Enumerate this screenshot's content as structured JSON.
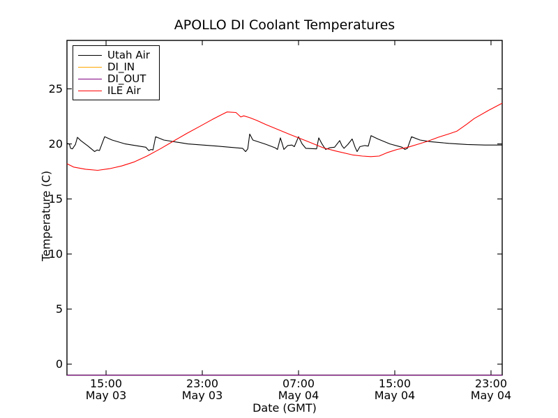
{
  "figure": {
    "background": "#ffffff",
    "axis_color": "#000000"
  },
  "chart_data": {
    "type": "line",
    "title": "APOLLO DI Coolant Temperatures",
    "xlabel": "Date (GMT)",
    "ylabel": "Temperature (C)",
    "grid": false,
    "legend_position": "upper left",
    "xlim_hours": [
      11.75,
      47.93
    ],
    "ylim": [
      -1.0,
      29.4
    ],
    "x_hours_reference": "hours since May 03 00:00 GMT",
    "yticks": [
      0,
      5,
      10,
      15,
      20,
      25
    ],
    "xticks": [
      {
        "hour": 15,
        "time": "15:00",
        "date": "May 03"
      },
      {
        "hour": 23,
        "time": "23:00",
        "date": "May 03"
      },
      {
        "hour": 31,
        "time": "07:00",
        "date": "May 04"
      },
      {
        "hour": 39,
        "time": "15:00",
        "date": "May 04"
      },
      {
        "hour": 47,
        "time": "23:00",
        "date": "May 04"
      }
    ],
    "series": [
      {
        "name": "Utah Air",
        "color": "#000000",
        "points": [
          [
            11.75,
            20.05
          ],
          [
            11.95,
            20.0
          ],
          [
            12.05,
            19.6
          ],
          [
            12.2,
            19.55
          ],
          [
            12.45,
            19.95
          ],
          [
            12.62,
            20.6
          ],
          [
            12.9,
            20.3
          ],
          [
            13.5,
            19.8
          ],
          [
            14.05,
            19.3
          ],
          [
            14.25,
            19.45
          ],
          [
            14.45,
            19.4
          ],
          [
            14.88,
            20.65
          ],
          [
            15.5,
            20.35
          ],
          [
            16.6,
            20.0
          ],
          [
            18.3,
            19.7
          ],
          [
            18.55,
            19.4
          ],
          [
            18.75,
            19.5
          ],
          [
            18.9,
            19.45
          ],
          [
            19.12,
            20.65
          ],
          [
            19.8,
            20.35
          ],
          [
            21.8,
            20.0
          ],
          [
            24.2,
            19.8
          ],
          [
            26.35,
            19.6
          ],
          [
            26.6,
            19.3
          ],
          [
            26.78,
            19.55
          ],
          [
            26.94,
            20.9
          ],
          [
            27.2,
            20.35
          ],
          [
            28.2,
            20.0
          ],
          [
            29.05,
            19.65
          ],
          [
            29.25,
            19.5
          ],
          [
            29.49,
            20.55
          ],
          [
            29.65,
            20.0
          ],
          [
            29.78,
            19.5
          ],
          [
            30.1,
            19.85
          ],
          [
            30.45,
            19.9
          ],
          [
            30.65,
            19.75
          ],
          [
            31.0,
            20.65
          ],
          [
            31.3,
            20.0
          ],
          [
            31.6,
            19.6
          ],
          [
            32.5,
            19.55
          ],
          [
            32.68,
            20.55
          ],
          [
            32.95,
            20.0
          ],
          [
            33.25,
            19.5
          ],
          [
            33.6,
            19.65
          ],
          [
            34.0,
            19.7
          ],
          [
            34.42,
            20.3
          ],
          [
            34.6,
            19.85
          ],
          [
            34.78,
            19.6
          ],
          [
            35.1,
            19.95
          ],
          [
            35.46,
            20.45
          ],
          [
            35.7,
            19.7
          ],
          [
            35.87,
            19.3
          ],
          [
            36.1,
            19.75
          ],
          [
            36.5,
            19.85
          ],
          [
            36.8,
            19.8
          ],
          [
            37.03,
            20.75
          ],
          [
            37.6,
            20.45
          ],
          [
            38.6,
            20.0
          ],
          [
            39.6,
            19.7
          ],
          [
            39.85,
            19.5
          ],
          [
            40.05,
            19.6
          ],
          [
            40.39,
            20.65
          ],
          [
            41.1,
            20.35
          ],
          [
            42.0,
            20.2
          ],
          [
            43.5,
            20.05
          ],
          [
            45.0,
            19.95
          ],
          [
            46.5,
            19.9
          ],
          [
            47.93,
            19.9
          ]
        ]
      },
      {
        "name": "DI_IN",
        "color": "#ffa500",
        "points": [
          [
            11.75,
            -1.0
          ],
          [
            47.93,
            -1.0
          ]
        ]
      },
      {
        "name": "DI_OUT",
        "color": "#800080",
        "points": [
          [
            11.75,
            -1.0
          ],
          [
            47.93,
            -1.0
          ]
        ]
      },
      {
        "name": "ILE Air",
        "color": "#ff0000",
        "points": [
          [
            11.75,
            18.2
          ],
          [
            12.3,
            17.9
          ],
          [
            13.3,
            17.7
          ],
          [
            14.3,
            17.6
          ],
          [
            15.3,
            17.75
          ],
          [
            16.3,
            18.0
          ],
          [
            17.3,
            18.35
          ],
          [
            18.4,
            18.9
          ],
          [
            19.5,
            19.55
          ],
          [
            20.6,
            20.25
          ],
          [
            21.7,
            20.95
          ],
          [
            22.8,
            21.6
          ],
          [
            23.8,
            22.2
          ],
          [
            24.5,
            22.6
          ],
          [
            25.05,
            22.9
          ],
          [
            25.8,
            22.85
          ],
          [
            26.2,
            22.45
          ],
          [
            26.45,
            22.55
          ],
          [
            26.9,
            22.4
          ],
          [
            27.5,
            22.15
          ],
          [
            28.3,
            21.75
          ],
          [
            29.3,
            21.3
          ],
          [
            30.3,
            20.85
          ],
          [
            31.7,
            20.25
          ],
          [
            33.05,
            19.65
          ],
          [
            34.1,
            19.35
          ],
          [
            35.5,
            19.0
          ],
          [
            36.3,
            18.9
          ],
          [
            37.0,
            18.85
          ],
          [
            37.7,
            18.9
          ],
          [
            38.35,
            19.2
          ],
          [
            39.2,
            19.5
          ],
          [
            40.1,
            19.7
          ],
          [
            41.0,
            20.0
          ],
          [
            41.75,
            20.25
          ],
          [
            42.6,
            20.6
          ],
          [
            43.6,
            20.95
          ],
          [
            44.15,
            21.15
          ],
          [
            45.0,
            21.8
          ],
          [
            45.6,
            22.3
          ],
          [
            46.8,
            23.05
          ],
          [
            47.93,
            23.7
          ]
        ]
      }
    ]
  }
}
